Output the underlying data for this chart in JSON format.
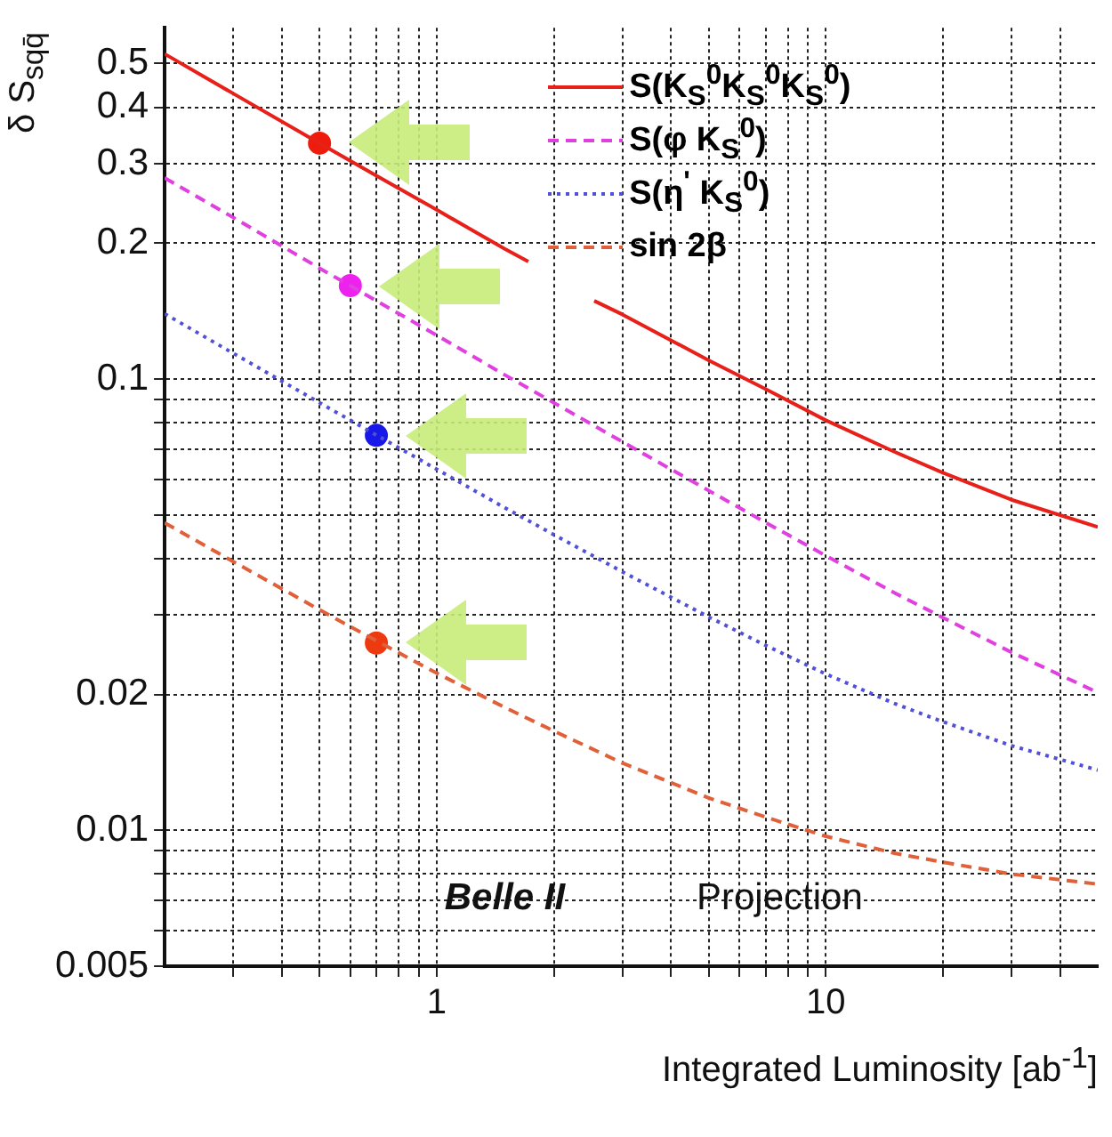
{
  "chart_data": {
    "type": "line",
    "xlabel": "Integrated Luminosity [ab$^{-1}$]",
    "ylabel": "δ S$_{sqq̄}$",
    "log": "xy",
    "grid": true,
    "legend": "top right",
    "marker": "none",
    "xlim": [
      0.2,
      50
    ],
    "xticks": [
      {
        "value": 0.3,
        "label": null
      },
      {
        "value": 0.4,
        "label": null
      },
      {
        "value": 0.5,
        "label": null
      },
      {
        "value": 0.6,
        "label": null
      },
      {
        "value": 0.7,
        "label": null
      },
      {
        "value": 0.8,
        "label": null
      },
      {
        "value": 0.9,
        "label": null
      },
      1,
      {
        "value": 2,
        "label": null
      },
      {
        "value": 3,
        "label": null
      },
      {
        "value": 4,
        "label": null
      },
      {
        "value": 5,
        "label": null
      },
      {
        "value": 6,
        "label": null
      },
      {
        "value": 7,
        "label": null
      },
      {
        "value": 8,
        "label": null
      },
      {
        "value": 9,
        "label": null
      },
      10,
      {
        "value": 20,
        "label": null
      },
      {
        "value": 30,
        "label": null
      },
      {
        "value": 40,
        "label": null
      }
    ],
    "ylim": [
      0.005,
      0.6
    ],
    "yticks": [
      0.005,
      {
        "value": 0.006,
        "label": null
      },
      {
        "value": 0.007,
        "label": null
      },
      {
        "value": 0.008,
        "label": null
      },
      {
        "value": 0.009,
        "label": null
      },
      0.01,
      0.02,
      {
        "value": 0.03,
        "label": null
      },
      {
        "value": 0.04,
        "label": null
      },
      {
        "value": 0.05,
        "label": null
      },
      {
        "value": 0.06,
        "label": null
      },
      {
        "value": 0.07,
        "label": null
      },
      {
        "value": 0.08,
        "label": null
      },
      {
        "value": 0.09,
        "label": null
      },
      0.1,
      0.2,
      0.3,
      0.4,
      0.5
    ],
    "annotations": [
      "Belle II",
      "Projection"
    ],
    "series": [
      {
        "name": "S(K$_{S}$$^{0}$K$_{S}$$^{0}$K$_{S}$$^{0}$)",
        "color": "#e8201a",
        "line_style": "solid",
        "x": [
          0.2,
          0.3,
          0.5,
          0.7,
          1,
          1.5,
          1.72,
          2,
          2.54,
          3,
          5,
          7,
          10,
          15,
          20,
          30,
          50
        ],
        "values": [
          0.525,
          0.429,
          0.333,
          0.282,
          0.237,
          0.194,
          0.182,
          null,
          0.149,
          0.139,
          0.11,
          0.095,
          0.081,
          0.069,
          0.062,
          0.054,
          0.047
        ]
      },
      {
        "name": "S(φ K$_{S}$$^{0}$)",
        "color": "#e040e0",
        "line_style": "dashed",
        "x": [
          0.2,
          0.3,
          0.5,
          0.7,
          1,
          1.5,
          2,
          3,
          5,
          7,
          10,
          15,
          20,
          30,
          50
        ],
        "values": [
          0.279,
          0.228,
          0.176,
          0.149,
          0.125,
          0.102,
          0.0886,
          0.0726,
          0.0566,
          0.0481,
          0.0406,
          0.0336,
          0.0296,
          0.0248,
          0.0202
        ]
      },
      {
        "name": "S(η$^{'}$ K$_{S}$$^{0}$)",
        "color": "#5050d8",
        "line_style": "dotted",
        "x": [
          0.2,
          0.3,
          0.5,
          0.7,
          1,
          1.5,
          2,
          3,
          5,
          7,
          10,
          15,
          20,
          30,
          50
        ],
        "values": [
          0.1395,
          0.114,
          0.0886,
          0.0751,
          0.0631,
          0.0518,
          0.0452,
          0.0374,
          0.0297,
          0.0257,
          0.0222,
          0.0191,
          0.0174,
          0.0154,
          0.0136
        ]
      },
      {
        "name": "sin 2β",
        "color": "#e0603a",
        "line_style": "dashed",
        "x": [
          0.2,
          0.3,
          0.5,
          0.7,
          1,
          1.5,
          2,
          3,
          5,
          7,
          10,
          15,
          20,
          30,
          50
        ],
        "values": [
          0.048,
          0.0394,
          0.0308,
          0.0263,
          0.0223,
          0.0187,
          0.0166,
          0.0141,
          0.0118,
          0.0107,
          0.0097,
          0.0089,
          0.0085,
          0.008,
          0.0076
        ]
      },
      {
        "type": "scatter",
        "marker": "circle",
        "color": "#ee1c0c",
        "x": [
          0.5
        ],
        "values": [
          0.333
        ]
      },
      {
        "type": "scatter",
        "marker": "circle",
        "color": "#ee22ee",
        "x": [
          0.6
        ],
        "values": [
          0.161
        ]
      },
      {
        "type": "scatter",
        "marker": "circle",
        "color": "#1818e8",
        "x": [
          0.7
        ],
        "values": [
          0.075
        ]
      },
      {
        "type": "scatter",
        "marker": "circle",
        "color": "#ee3a10",
        "x": [
          0.7
        ],
        "values": [
          0.026
        ]
      }
    ]
  }
}
